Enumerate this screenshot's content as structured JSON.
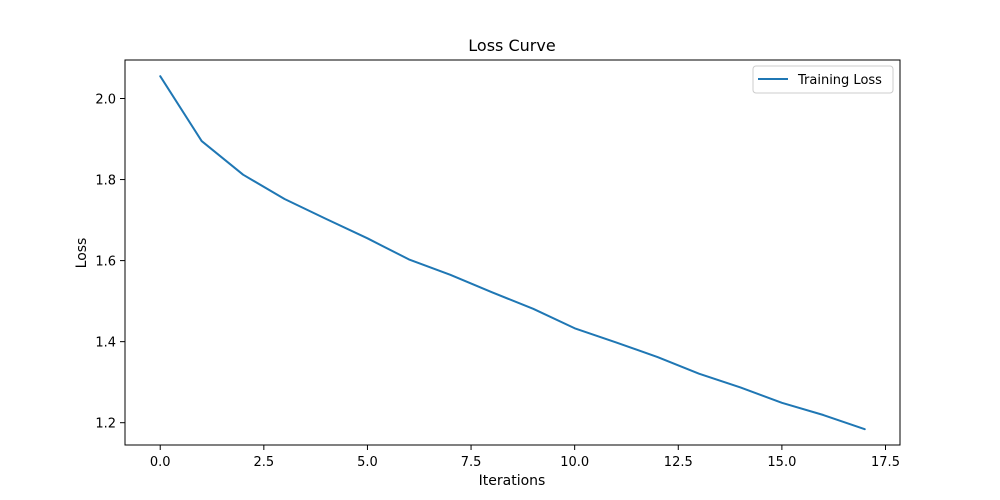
{
  "chart_data": {
    "type": "line",
    "title": "Loss Curve",
    "xlabel": "Iterations",
    "ylabel": "Loss",
    "xlim": [
      -0.85,
      17.85
    ],
    "ylim": [
      1.145,
      2.095
    ],
    "xticks": [
      0.0,
      2.5,
      5.0,
      7.5,
      10.0,
      12.5,
      15.0,
      17.5
    ],
    "xtick_labels": [
      "0.0",
      "2.5",
      "5.0",
      "7.5",
      "10.0",
      "12.5",
      "15.0",
      "17.5"
    ],
    "yticks": [
      1.2,
      1.4,
      1.6,
      1.8,
      2.0
    ],
    "ytick_labels": [
      "1.2",
      "1.4",
      "1.6",
      "1.8",
      "2.0"
    ],
    "grid": false,
    "legend_position": "top-right",
    "series": [
      {
        "name": "Training Loss",
        "color": "#1f77b4",
        "x": [
          0,
          1,
          2,
          3,
          4,
          5,
          6,
          7,
          8,
          9,
          10,
          11,
          12,
          13,
          14,
          15,
          16,
          17
        ],
        "y": [
          2.055,
          1.895,
          1.812,
          1.752,
          1.703,
          1.655,
          1.603,
          1.565,
          1.522,
          1.481,
          1.433,
          1.398,
          1.362,
          1.321,
          1.287,
          1.249,
          1.219,
          1.184
        ]
      }
    ]
  }
}
